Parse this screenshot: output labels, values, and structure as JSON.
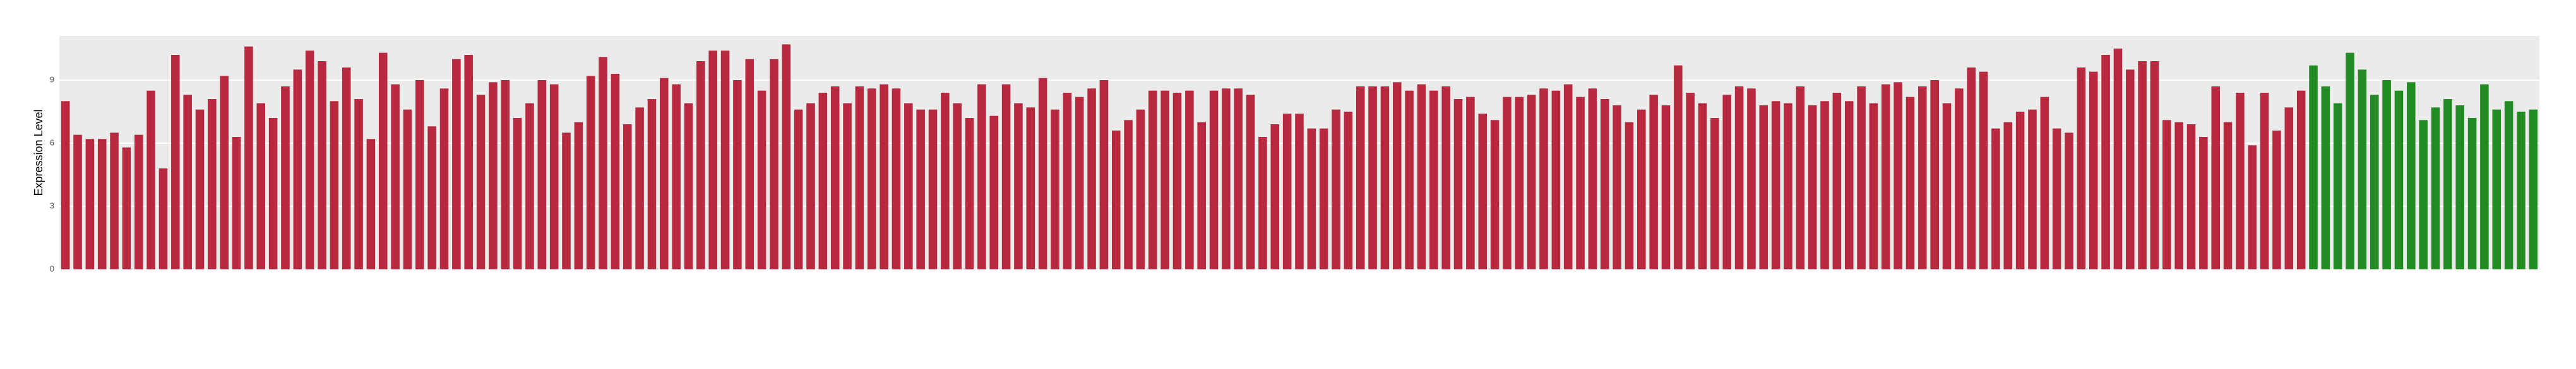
{
  "chart_data": {
    "type": "bar",
    "y_label": "Expression Level",
    "categories": [
      null,
      null,
      null,
      null,
      null,
      null,
      null,
      null,
      null,
      null,
      null,
      null,
      null,
      null,
      null,
      null,
      null,
      null,
      null,
      null,
      null,
      null,
      null,
      null,
      null,
      null,
      null,
      null,
      null,
      null,
      null,
      null,
      null,
      null,
      null,
      null,
      null,
      null,
      null,
      null,
      null,
      null,
      null,
      null,
      null,
      null,
      null,
      null,
      null,
      null,
      null,
      null,
      null,
      null,
      null,
      null,
      null,
      null,
      null,
      null,
      null,
      null,
      null,
      null,
      null,
      null,
      null,
      null,
      null,
      null,
      null,
      null,
      null,
      null,
      null,
      null,
      null,
      null,
      null,
      null,
      null,
      null,
      null,
      null,
      null,
      null,
      null,
      null,
      null,
      null,
      null,
      null,
      null,
      null,
      null,
      null,
      null,
      null,
      null,
      null,
      null,
      null,
      null,
      null,
      null,
      null,
      null,
      null,
      null,
      null,
      null,
      null,
      null,
      null,
      null,
      null,
      null,
      null,
      null,
      null,
      null,
      null,
      null,
      null,
      null,
      null,
      null,
      null,
      null,
      null,
      null,
      null,
      null,
      null,
      null,
      null,
      null,
      null,
      null,
      null,
      null,
      null,
      null,
      null,
      null,
      null,
      null,
      null,
      null,
      null,
      null,
      null,
      null,
      null,
      null,
      null,
      null,
      null,
      null,
      null,
      null,
      null,
      null,
      null,
      null,
      null,
      null,
      null,
      null,
      null,
      null,
      null,
      null,
      null,
      null,
      null,
      null,
      null,
      null,
      null,
      null,
      null,
      null,
      null,
      null,
      null,
      null,
      null,
      null,
      null,
      null,
      null,
      null,
      null,
      null,
      null,
      null,
      null,
      null,
      null,
      null,
      null,
      null
    ],
    "values": [
      8.0,
      6.4,
      6.2,
      6.2,
      6.5,
      5.8,
      6.4,
      8.5,
      4.8,
      10.2,
      8.3,
      7.6,
      8.1,
      9.2,
      6.3,
      10.6,
      7.9,
      7.2,
      8.7,
      9.5,
      10.4,
      9.9,
      8.0,
      9.6,
      8.1,
      6.2,
      10.3,
      8.8,
      7.6,
      9.0,
      6.8,
      8.6,
      10.0,
      10.2,
      8.3,
      8.9,
      9.0,
      7.2,
      7.9,
      9.0,
      8.8,
      6.5,
      7.0,
      9.2,
      10.1,
      9.3,
      6.9,
      7.7,
      8.1,
      9.1,
      8.8,
      7.9,
      9.9,
      10.4,
      10.4,
      9.0,
      10.0,
      8.5,
      10.0,
      10.7,
      7.6,
      7.9,
      8.4,
      8.7,
      7.9,
      8.7,
      8.6,
      8.8,
      8.6,
      7.9,
      7.6,
      7.6,
      8.4,
      7.9,
      7.2,
      8.8,
      7.3,
      8.8,
      7.9,
      7.7,
      9.1,
      7.6,
      8.4,
      8.2,
      8.6,
      9.0,
      6.6,
      7.1,
      7.6,
      8.5,
      8.5,
      8.4,
      8.5,
      7.0,
      8.5,
      8.6,
      8.6,
      8.3,
      6.3,
      6.9,
      7.4,
      7.4,
      6.7,
      6.7,
      7.6,
      7.5,
      8.7,
      8.7,
      8.7,
      8.9,
      8.5,
      8.8,
      8.5,
      8.7,
      8.1,
      8.2,
      7.4,
      7.1,
      8.2,
      8.2,
      8.3,
      8.6,
      8.5,
      8.8,
      8.2,
      8.6,
      8.1,
      7.8,
      7.0,
      7.6,
      8.3,
      7.8,
      9.7,
      8.4,
      7.9,
      7.2,
      8.3,
      8.7,
      8.6,
      7.8,
      8.0,
      7.9,
      8.7,
      7.8,
      8.0,
      8.4,
      8.0,
      8.7,
      7.9,
      8.8,
      8.9,
      8.2,
      8.7,
      9.0,
      7.9,
      8.6,
      9.6,
      9.4,
      6.7,
      7.0,
      7.5,
      7.6,
      8.2,
      6.7,
      6.5,
      9.6,
      9.4,
      10.2,
      10.5,
      9.5,
      9.9,
      9.9,
      7.1,
      7.0,
      6.9,
      6.3,
      8.7,
      7.0,
      8.4,
      5.9,
      8.4,
      6.6,
      7.7,
      8.5,
      9.7,
      8.7,
      7.9,
      10.3,
      9.5,
      8.3,
      9.0,
      8.5,
      8.9,
      7.1,
      7.7,
      8.1,
      7.8,
      7.2,
      8.8,
      7.6,
      8.0,
      7.5,
      7.6
    ],
    "colors": [
      "#b8293f",
      "#b8293f",
      "#b8293f",
      "#b8293f",
      "#b8293f",
      "#b8293f",
      "#b8293f",
      "#b8293f",
      "#b8293f",
      "#b8293f",
      "#b8293f",
      "#b8293f",
      "#b8293f",
      "#b8293f",
      "#b8293f",
      "#b8293f",
      "#b8293f",
      "#b8293f",
      "#b8293f",
      "#b8293f",
      "#b8293f",
      "#b8293f",
      "#b8293f",
      "#b8293f",
      "#b8293f",
      "#b8293f",
      "#b8293f",
      "#b8293f",
      "#b8293f",
      "#b8293f",
      "#b8293f",
      "#b8293f",
      "#b8293f",
      "#b8293f",
      "#b8293f",
      "#b8293f",
      "#b8293f",
      "#b8293f",
      "#b8293f",
      "#b8293f",
      "#b8293f",
      "#b8293f",
      "#b8293f",
      "#b8293f",
      "#b8293f",
      "#b8293f",
      "#b8293f",
      "#b8293f",
      "#b8293f",
      "#b8293f",
      "#b8293f",
      "#b8293f",
      "#b8293f",
      "#b8293f",
      "#b8293f",
      "#b8293f",
      "#b8293f",
      "#b8293f",
      "#b8293f",
      "#b8293f",
      "#b8293f",
      "#b8293f",
      "#b8293f",
      "#b8293f",
      "#b8293f",
      "#b8293f",
      "#b8293f",
      "#b8293f",
      "#b8293f",
      "#b8293f",
      "#b8293f",
      "#b8293f",
      "#b8293f",
      "#b8293f",
      "#b8293f",
      "#b8293f",
      "#b8293f",
      "#b8293f",
      "#b8293f",
      "#b8293f",
      "#b8293f",
      "#b8293f",
      "#b8293f",
      "#b8293f",
      "#b8293f",
      "#b8293f",
      "#b8293f",
      "#b8293f",
      "#b8293f",
      "#b8293f",
      "#b8293f",
      "#b8293f",
      "#b8293f",
      "#b8293f",
      "#b8293f",
      "#b8293f",
      "#b8293f",
      "#b8293f",
      "#b8293f",
      "#b8293f",
      "#b8293f",
      "#b8293f",
      "#b8293f",
      "#b8293f",
      "#b8293f",
      "#b8293f",
      "#b8293f",
      "#b8293f",
      "#b8293f",
      "#b8293f",
      "#b8293f",
      "#b8293f",
      "#b8293f",
      "#b8293f",
      "#b8293f",
      "#b8293f",
      "#b8293f",
      "#b8293f",
      "#b8293f",
      "#b8293f",
      "#b8293f",
      "#b8293f",
      "#b8293f",
      "#b8293f",
      "#b8293f",
      "#b8293f",
      "#b8293f",
      "#b8293f",
      "#b8293f",
      "#b8293f",
      "#b8293f",
      "#b8293f",
      "#b8293f",
      "#b8293f",
      "#b8293f",
      "#b8293f",
      "#b8293f",
      "#b8293f",
      "#b8293f",
      "#b8293f",
      "#b8293f",
      "#b8293f",
      "#b8293f",
      "#b8293f",
      "#b8293f",
      "#b8293f",
      "#b8293f",
      "#b8293f",
      "#b8293f",
      "#b8293f",
      "#b8293f",
      "#b8293f",
      "#b8293f",
      "#b8293f",
      "#b8293f",
      "#b8293f",
      "#b8293f",
      "#b8293f",
      "#b8293f",
      "#b8293f",
      "#b8293f",
      "#b8293f",
      "#b8293f",
      "#b8293f",
      "#b8293f",
      "#b8293f",
      "#b8293f",
      "#b8293f",
      "#b8293f",
      "#b8293f",
      "#b8293f",
      "#b8293f",
      "#b8293f",
      "#b8293f",
      "#b8293f",
      "#b8293f",
      "#b8293f",
      "#b8293f",
      "#b8293f",
      "#b8293f",
      "#b8293f",
      "#b8293f",
      "#b8293f",
      "#b8293f",
      "#238b23",
      "#238b23",
      "#238b23",
      "#238b23",
      "#238b23",
      "#238b23",
      "#238b23",
      "#238b23",
      "#238b23",
      "#238b23",
      "#238b23",
      "#238b23",
      "#238b23",
      "#238b23",
      "#238b23",
      "#238b23",
      "#238b23",
      "#238b23",
      "#238b23",
      "#238b23",
      "#238b23"
    ],
    "ylim": [
      0,
      11.1
    ],
    "yticks": [
      0,
      3,
      6,
      9
    ],
    "grid": true
  }
}
